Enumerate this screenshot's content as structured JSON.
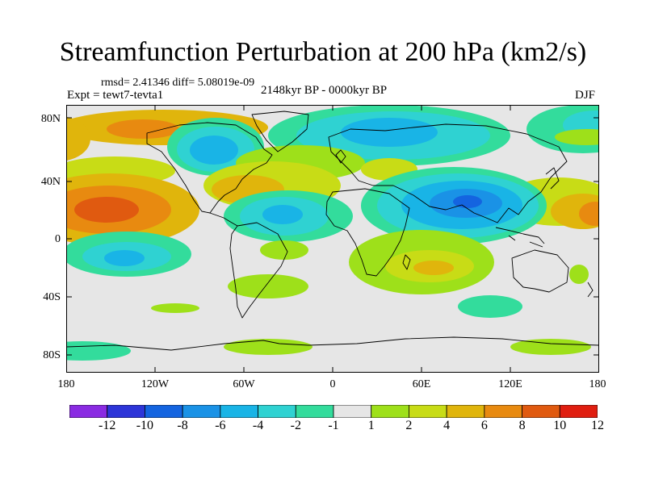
{
  "title": "Streamfunction Perturbation at 200 hPa (km2/s)",
  "stats_line": "rmsd= 2.41346 diff= 5.08019e-09",
  "experiment": "Expt = tewt7-tevta1",
  "period": "2148kyr BP - 0000kyr BP",
  "season": "DJF",
  "lat_labels": [
    "80N",
    "40N",
    "0",
    "40S",
    "80S"
  ],
  "lon_labels": [
    "180",
    "120W",
    "60W",
    "0",
    "60E",
    "120E",
    "180"
  ],
  "colorbar": {
    "labels": [
      "-12",
      "-10",
      "-8",
      "-6",
      "-4",
      "-2",
      "-1",
      "1",
      "2",
      "4",
      "6",
      "8",
      "10",
      "12"
    ],
    "colors": [
      "#8a2be2",
      "#2d35d8",
      "#1464e0",
      "#1a92e6",
      "#19b4e6",
      "#2fd2d2",
      "#33dc9c",
      "#e6e6e6",
      "#9ee01a",
      "#c8dc16",
      "#e0b50c",
      "#e88a10",
      "#e05a10",
      "#e01e10"
    ]
  }
}
